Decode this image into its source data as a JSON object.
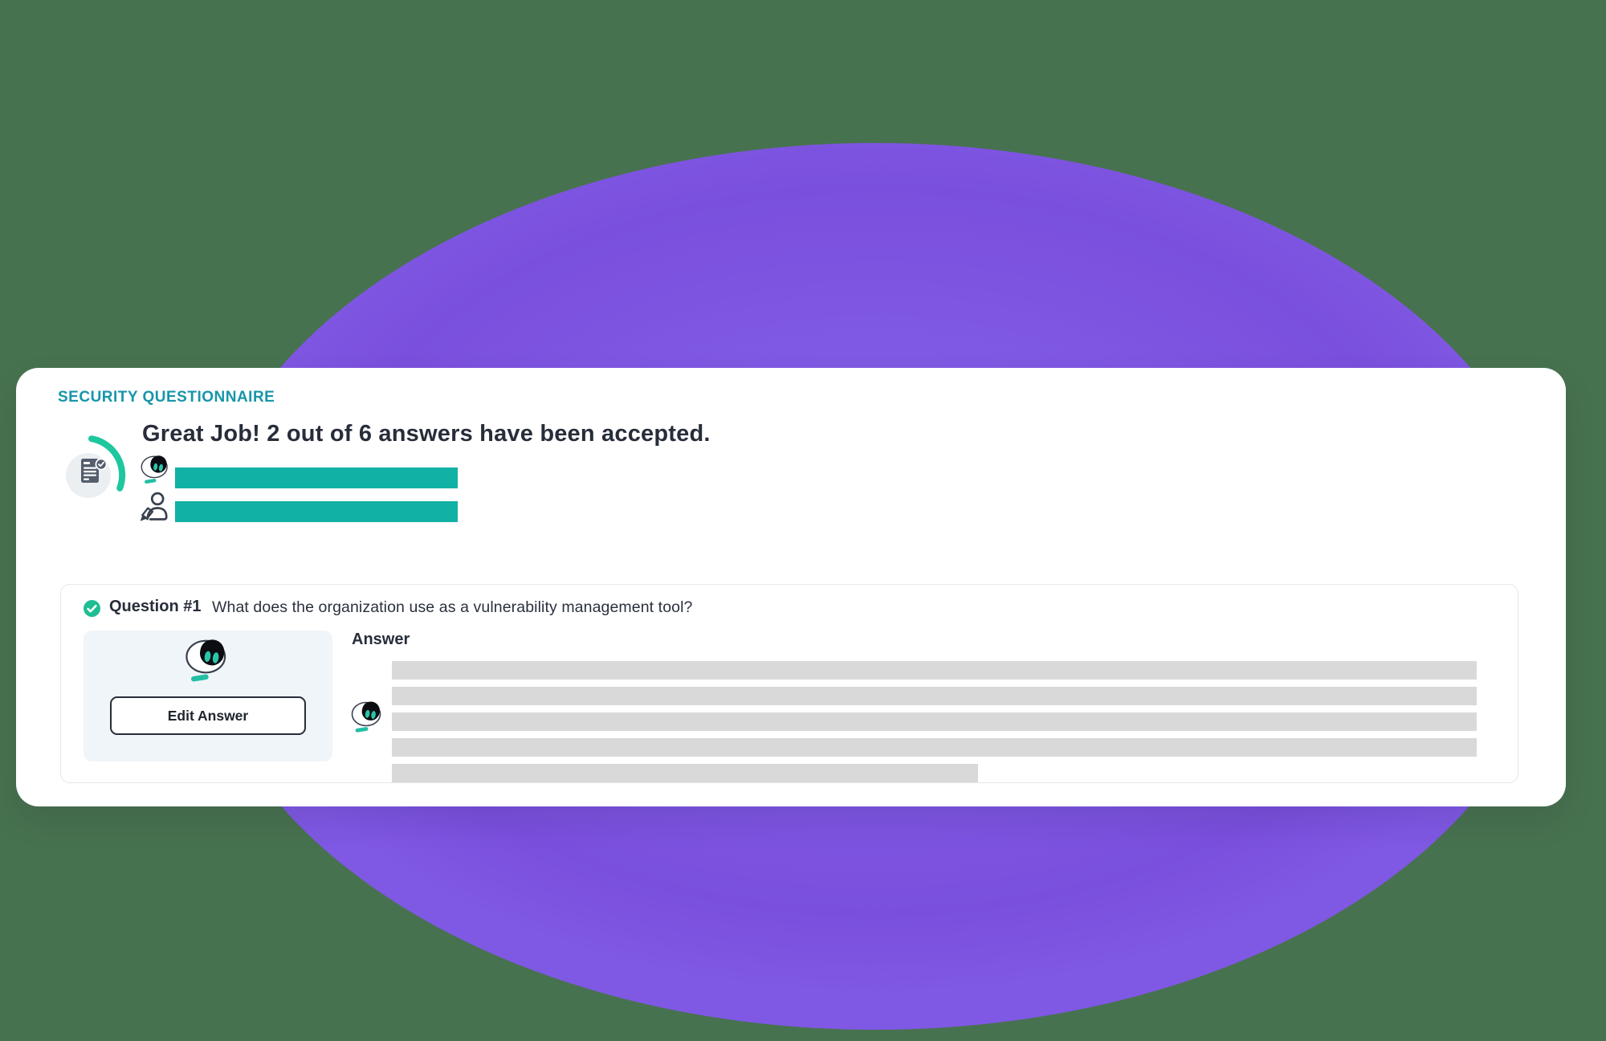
{
  "colors": {
    "page-bg": "#47724F",
    "blob-inner": "#8763EA",
    "blob-mid": "#7F58E3",
    "blob-outer": "#7A4FDD",
    "card-bg": "#FFFFFF",
    "eyebrow": "#1795A9",
    "heading": "#272D3A",
    "teal-bar": "#12B1A5",
    "ring-arc": "#1FC79E",
    "robot-teal": "#2AC6A9",
    "check-green": "#1EBE94",
    "skeleton": "#D9D9D9",
    "panel": "#F0F5F9",
    "inner-border": "#E5E7EB",
    "dark-outline": "#272C38",
    "icon-slate": "#545E6D"
  },
  "header": {
    "eyebrow": "SECURITY QUESTIONNAIRE",
    "title": "Great Job! 2 out of 6 answers have been accepted."
  },
  "progress": {
    "rows": [
      {
        "icon": "robot-icon"
      },
      {
        "icon": "person-writing-icon"
      }
    ]
  },
  "question": {
    "status_icon": "check-icon",
    "label": "Question #1",
    "text": "What does the organization use as a vulnerability management tool?",
    "edit_button_label": "Edit Answer",
    "answer_label": "Answer",
    "answer_skeleton": {
      "line_count": 5,
      "last_line_width_pct": 54
    }
  }
}
